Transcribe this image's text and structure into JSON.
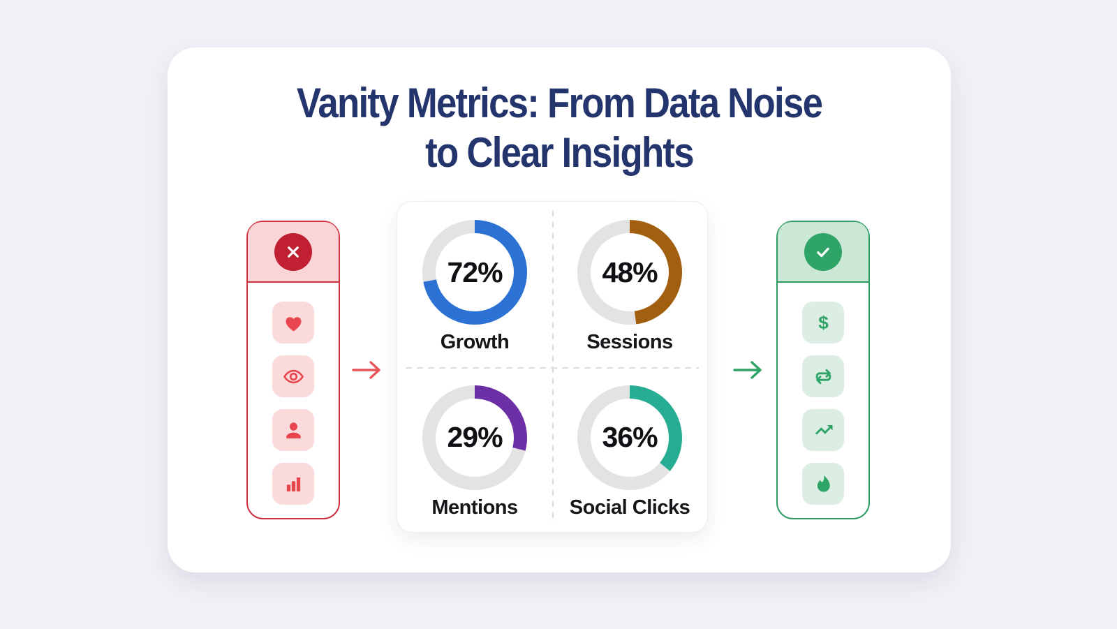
{
  "title": {
    "line1": "Vanity Metrics: From Data Noise",
    "line2": "to Clear Insights"
  },
  "colors": {
    "page_bg": "#F0F0F6",
    "card_bg": "#FFFFFF",
    "title": "#24356E",
    "red_border": "#CE3140",
    "red_header_bg": "#FAD5D8",
    "red_tile_bg": "#FBDADC",
    "red_icon": "#E9454F",
    "red_badge": "#C02031",
    "red_arrow": "#E9545B",
    "green_border": "#2E9D63",
    "green_header_bg": "#CBE8D7",
    "green_tile_bg": "#DCEEE4",
    "green_icon": "#2EA466",
    "green_badge": "#2EA466",
    "green_arrow": "#2EA466",
    "donut_track": "#E3E3E4",
    "value_text": "#101014"
  },
  "vanity_panel": {
    "status_icon": "x-icon",
    "tiles": [
      {
        "icon": "heart-icon"
      },
      {
        "icon": "eye-icon"
      },
      {
        "icon": "person-icon"
      },
      {
        "icon": "bar-chart-icon"
      }
    ]
  },
  "insights_panel": {
    "status_icon": "check-icon",
    "tiles": [
      {
        "icon": "dollar-icon"
      },
      {
        "icon": "repeat-icon"
      },
      {
        "icon": "trend-up-icon"
      },
      {
        "icon": "flame-icon"
      }
    ]
  },
  "arrows": [
    {
      "icon": "arrow-right-icon",
      "color_key": "red_arrow"
    },
    {
      "icon": "arrow-right-icon",
      "color_key": "green_arrow"
    }
  ],
  "chart_data": {
    "type": "pie",
    "variant": "donut-gauges",
    "unit": "%",
    "legend_position": "none",
    "track_color": "#E3E3E4",
    "metrics": [
      {
        "label": "Growth",
        "value": 72,
        "color": "#2C72D4"
      },
      {
        "label": "Sessions",
        "value": 48,
        "color": "#A35F10"
      },
      {
        "label": "Mentions",
        "value": 29,
        "color": "#6D2FA6"
      },
      {
        "label": "Social Clicks",
        "value": 36,
        "color": "#27AD93"
      }
    ]
  }
}
